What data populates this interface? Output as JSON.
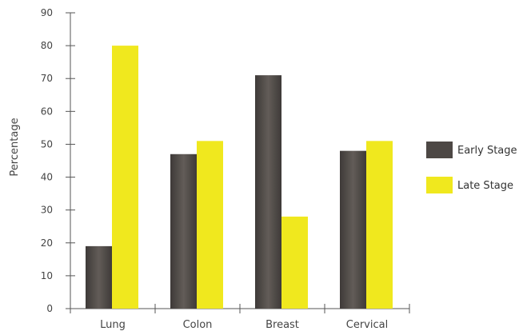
{
  "chart_data": {
    "type": "bar",
    "ylabel": "Percentage",
    "xlabel": "",
    "ylim": [
      0,
      90
    ],
    "yticks": [
      0,
      10,
      20,
      30,
      40,
      50,
      60,
      70,
      80,
      90
    ],
    "categories": [
      "Lung",
      "Colon",
      "Breast",
      "Cervical"
    ],
    "series": [
      {
        "name": "Early Stage",
        "values": [
          19,
          47,
          71,
          48
        ],
        "color": "#4d4845"
      },
      {
        "name": "Late Stage",
        "values": [
          80,
          51,
          28,
          51
        ],
        "color": "#f0e81e"
      }
    ],
    "legend_position": "right",
    "grid": false
  }
}
